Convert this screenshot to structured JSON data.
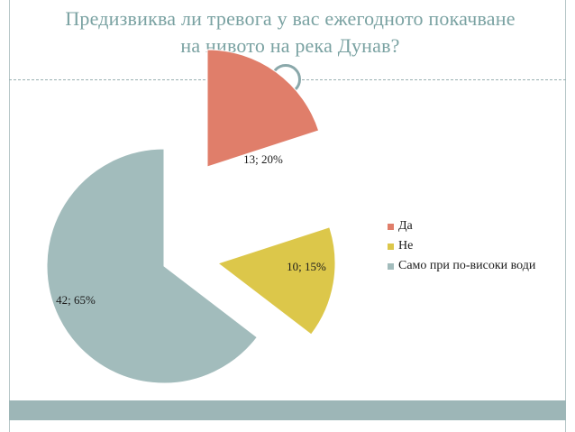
{
  "slide": {
    "title_line1": "Предизвиква ли тревога у вас ежегодното покачване",
    "title_line2": "на нивото на река Дунав?"
  },
  "chart_data": {
    "type": "pie",
    "title": "",
    "categories": [
      "Да",
      "Не",
      "Само при по-високи води"
    ],
    "values": [
      13,
      10,
      42
    ],
    "percents": [
      20,
      15,
      65
    ],
    "data_labels": [
      "13; 20%",
      "10; 15%",
      "42; 65%"
    ],
    "colors": [
      "#e07e6a",
      "#dcc74a",
      "#a2bcbc"
    ],
    "legend_position": "right",
    "exploded": true
  }
}
